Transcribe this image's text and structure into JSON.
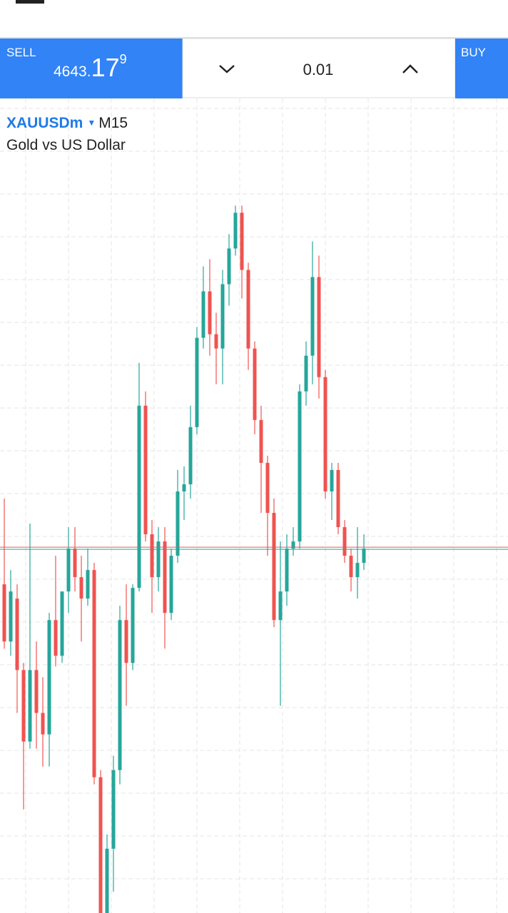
{
  "trade_panel": {
    "sell_label": "SELL",
    "sell_price_main": "4643.",
    "sell_price_big": "17",
    "sell_price_sup": "9",
    "lot": "0.01",
    "buy_label": "BUY"
  },
  "symbol": {
    "name": "XAUUSDm",
    "timeframe": "M15",
    "description": "Gold vs US Dollar"
  },
  "chart_data": {
    "type": "candlestick",
    "up_color": "#26a69a",
    "down_color": "#ef5350",
    "ylim": [
      4591.98,
      4705.98
    ],
    "bid_line": 4642.88,
    "ask_line": 4643.18,
    "open": [
      4637.98,
      4629.98,
      4635.98,
      4625.98,
      4615.98,
      4625.98,
      4619.98,
      4616.98,
      4632.98,
      4627.98,
      4636.98,
      4642.98,
      4638.98,
      4635.98,
      4639.98,
      4610.98,
      4591.98,
      4600.98,
      4611.98,
      4632.98,
      4626.98,
      4637.48,
      4662.98,
      4644.98,
      4638.98,
      4643.98,
      4633.98,
      4641.98,
      4650.98,
      4651.98,
      4659.98,
      4672.48,
      4678.98,
      4672.98,
      4670.98,
      4679.98,
      4684.98,
      4689.98,
      4681.98,
      4670.98,
      4660.98,
      4654.98,
      4647.98,
      4632.98,
      4636.98,
      4642.98,
      4643.98,
      4664.98,
      4669.98,
      4680.98,
      4666.98,
      4650.98,
      4653.98,
      4645.98,
      4641.98,
      4638.98,
      4640.98
    ],
    "high": [
      4649.98,
      4639.98,
      4637.98,
      4626.98,
      4646.48,
      4629.98,
      4624.98,
      4633.98,
      4641.98,
      4635.98,
      4645.98,
      4645.98,
      4641.98,
      4642.98,
      4640.98,
      4611.98,
      4602.98,
      4613.98,
      4634.98,
      4637.98,
      4637.98,
      4668.98,
      4664.98,
      4646.98,
      4645.98,
      4645.98,
      4642.98,
      4653.98,
      4654.48,
      4662.98,
      4673.98,
      4682.48,
      4683.48,
      4675.98,
      4681.98,
      4686.98,
      4690.98,
      4690.98,
      4682.98,
      4671.98,
      4662.98,
      4655.98,
      4649.98,
      4643.98,
      4644.98,
      4645.98,
      4665.98,
      4671.98,
      4685.98,
      4683.98,
      4667.98,
      4654.98,
      4654.98,
      4646.98,
      4642.98,
      4645.98,
      4644.98
    ],
    "low": [
      4628.98,
      4627.98,
      4619.98,
      4606.48,
      4614.98,
      4614.98,
      4612.48,
      4612.48,
      4626.48,
      4626.98,
      4633.98,
      4636.98,
      4629.98,
      4634.98,
      4609.98,
      4591.98,
      4591.98,
      4594.98,
      4609.98,
      4620.98,
      4625.98,
      4636.98,
      4643.98,
      4633.98,
      4636.98,
      4628.98,
      4632.98,
      4640.98,
      4646.98,
      4649.98,
      4658.98,
      4670.98,
      4669.98,
      4665.98,
      4665.98,
      4676.98,
      4683.98,
      4677.98,
      4667.98,
      4658.98,
      4647.98,
      4641.98,
      4631.98,
      4620.98,
      4634.98,
      4641.98,
      4642.98,
      4662.98,
      4665.98,
      4663.98,
      4649.98,
      4646.98,
      4644.98,
      4640.98,
      4636.98,
      4635.98,
      4639.98
    ],
    "close": [
      4629.98,
      4636.98,
      4625.98,
      4615.98,
      4625.98,
      4619.98,
      4616.98,
      4632.98,
      4627.98,
      4636.98,
      4642.98,
      4638.98,
      4635.98,
      4639.98,
      4610.98,
      4591.98,
      4600.98,
      4611.98,
      4632.98,
      4626.98,
      4637.48,
      4662.98,
      4644.98,
      4638.98,
      4643.98,
      4633.98,
      4641.98,
      4650.98,
      4651.98,
      4659.98,
      4672.48,
      4678.98,
      4672.98,
      4670.98,
      4679.98,
      4684.98,
      4689.98,
      4681.98,
      4670.98,
      4660.98,
      4654.98,
      4647.98,
      4632.98,
      4636.98,
      4642.98,
      4643.98,
      4664.98,
      4669.98,
      4680.98,
      4666.98,
      4650.98,
      4653.98,
      4645.98,
      4641.98,
      4638.98,
      4640.98,
      4642.98
    ]
  }
}
